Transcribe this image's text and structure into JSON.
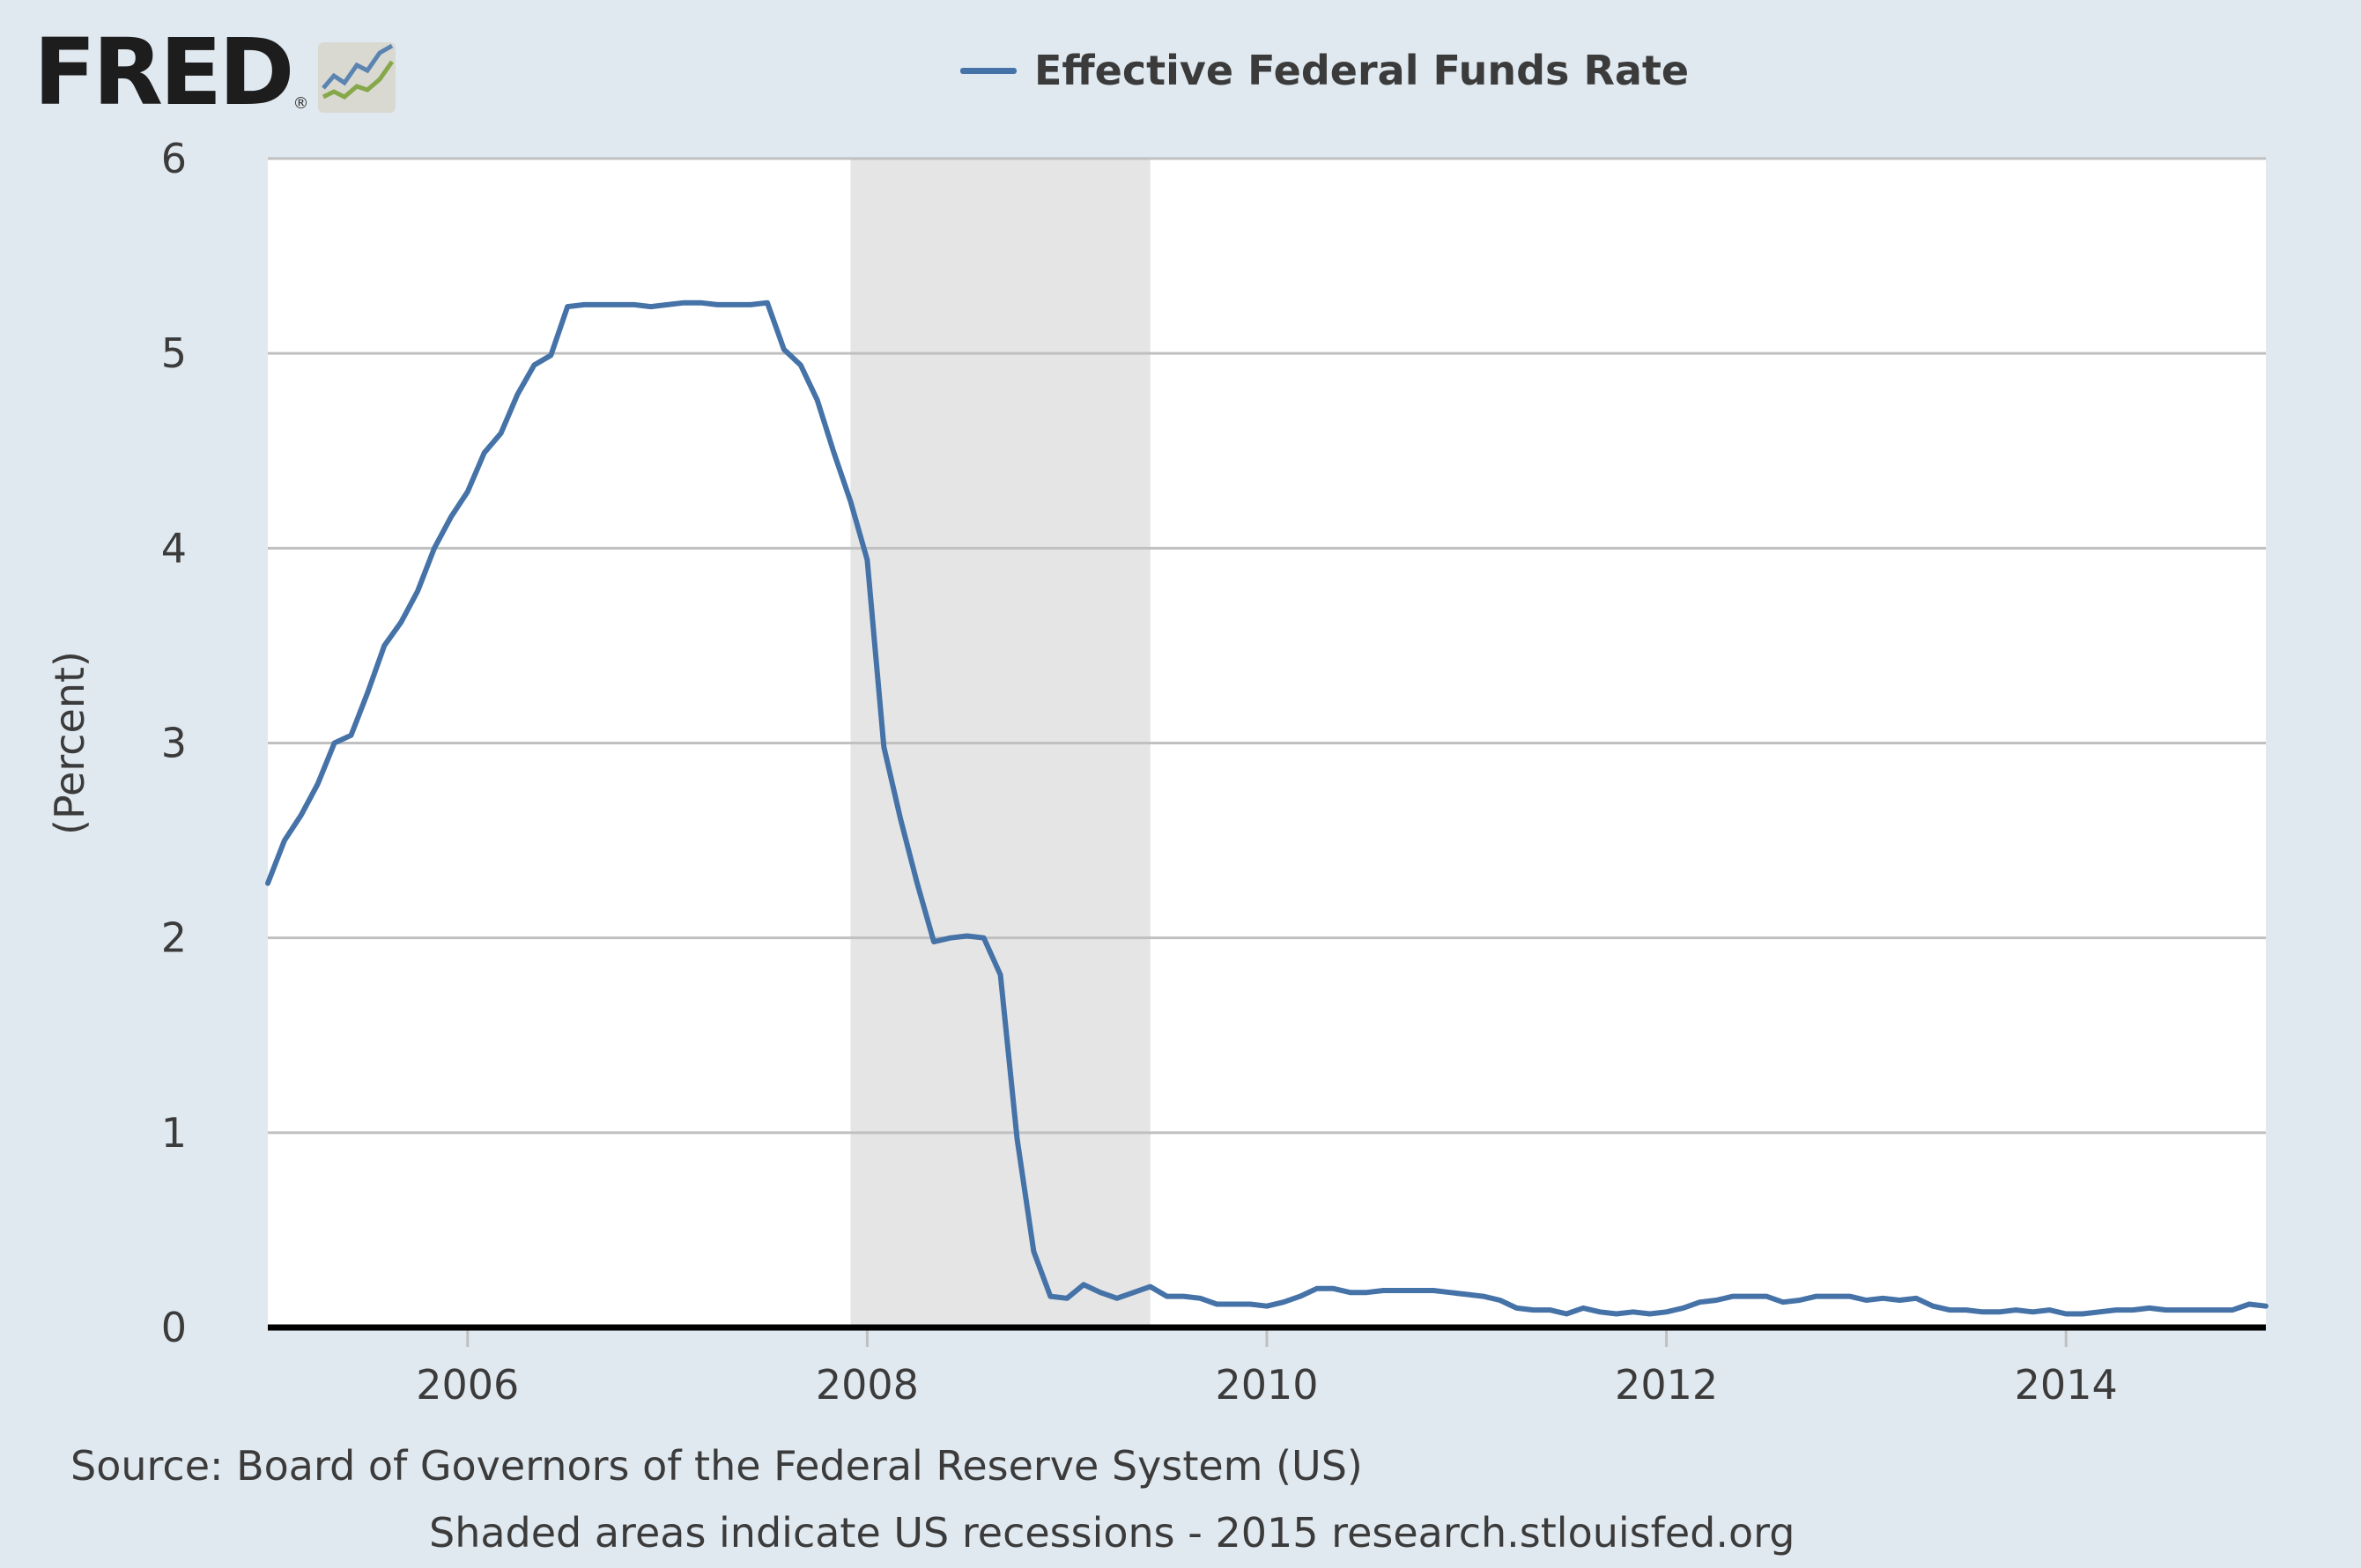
{
  "logo": {
    "text": "FRED",
    "registered_mark": "®",
    "icon": "fred-chart-icon"
  },
  "legend": {
    "label": "Effective Federal Funds Rate"
  },
  "colors": {
    "line": "#4572a7",
    "recession": "#e5e5e5",
    "plot_background": "#ffffff",
    "page_background": "#e1e9f0",
    "grid": "#c0c0c0",
    "baseline": "#000000",
    "text": "#3b3b3b"
  },
  "footer": {
    "source": "Source: Board of Governors of the Federal Reserve System (US)",
    "note": "Shaded areas indicate US recessions - 2015 research.stlouisfed.org"
  },
  "chart_data": {
    "type": "line",
    "title": "",
    "xlabel": "",
    "ylabel": "(Percent)",
    "xlim": [
      "2005-01",
      "2015-01"
    ],
    "ylim": [
      0,
      6
    ],
    "y_ticks": [
      0,
      1,
      2,
      3,
      4,
      5,
      6
    ],
    "x_ticks": [
      "2006",
      "2008",
      "2010",
      "2012",
      "2014"
    ],
    "grid": true,
    "legend_position": "top",
    "recessions": [
      {
        "start": "2007-12",
        "end": "2009-06"
      }
    ],
    "series": [
      {
        "name": "Effective Federal Funds Rate",
        "x": [
          "2005-01",
          "2005-02",
          "2005-03",
          "2005-04",
          "2005-05",
          "2005-06",
          "2005-07",
          "2005-08",
          "2005-09",
          "2005-10",
          "2005-11",
          "2005-12",
          "2006-01",
          "2006-02",
          "2006-03",
          "2006-04",
          "2006-05",
          "2006-06",
          "2006-07",
          "2006-08",
          "2006-09",
          "2006-10",
          "2006-11",
          "2006-12",
          "2007-01",
          "2007-02",
          "2007-03",
          "2007-04",
          "2007-05",
          "2007-06",
          "2007-07",
          "2007-08",
          "2007-09",
          "2007-10",
          "2007-11",
          "2007-12",
          "2008-01",
          "2008-02",
          "2008-03",
          "2008-04",
          "2008-05",
          "2008-06",
          "2008-07",
          "2008-08",
          "2008-09",
          "2008-10",
          "2008-11",
          "2008-12",
          "2009-01",
          "2009-02",
          "2009-03",
          "2009-04",
          "2009-05",
          "2009-06",
          "2009-07",
          "2009-08",
          "2009-09",
          "2009-10",
          "2009-11",
          "2009-12",
          "2010-01",
          "2010-02",
          "2010-03",
          "2010-04",
          "2010-05",
          "2010-06",
          "2010-07",
          "2010-08",
          "2010-09",
          "2010-10",
          "2010-11",
          "2010-12",
          "2011-01",
          "2011-02",
          "2011-03",
          "2011-04",
          "2011-05",
          "2011-06",
          "2011-07",
          "2011-08",
          "2011-09",
          "2011-10",
          "2011-11",
          "2011-12",
          "2012-01",
          "2012-02",
          "2012-03",
          "2012-04",
          "2012-05",
          "2012-06",
          "2012-07",
          "2012-08",
          "2012-09",
          "2012-10",
          "2012-11",
          "2012-12",
          "2013-01",
          "2013-02",
          "2013-03",
          "2013-04",
          "2013-05",
          "2013-06",
          "2013-07",
          "2013-08",
          "2013-09",
          "2013-10",
          "2013-11",
          "2013-12",
          "2014-01",
          "2014-02",
          "2014-03",
          "2014-04",
          "2014-05",
          "2014-06",
          "2014-07",
          "2014-08",
          "2014-09",
          "2014-10",
          "2014-11",
          "2014-12",
          "2015-01"
        ],
        "values": [
          2.28,
          2.5,
          2.63,
          2.79,
          3.0,
          3.04,
          3.26,
          3.5,
          3.62,
          3.78,
          4.0,
          4.16,
          4.29,
          4.49,
          4.59,
          4.79,
          4.94,
          4.99,
          5.24,
          5.25,
          5.25,
          5.25,
          5.25,
          5.24,
          5.25,
          5.26,
          5.26,
          5.25,
          5.25,
          5.25,
          5.26,
          5.02,
          4.94,
          4.76,
          4.49,
          4.24,
          3.94,
          2.98,
          2.61,
          2.28,
          1.98,
          2.0,
          2.01,
          2.0,
          1.81,
          0.97,
          0.39,
          0.16,
          0.15,
          0.22,
          0.18,
          0.15,
          0.18,
          0.21,
          0.16,
          0.16,
          0.15,
          0.12,
          0.12,
          0.12,
          0.11,
          0.13,
          0.16,
          0.2,
          0.2,
          0.18,
          0.18,
          0.19,
          0.19,
          0.19,
          0.19,
          0.18,
          0.17,
          0.16,
          0.14,
          0.1,
          0.09,
          0.09,
          0.07,
          0.1,
          0.08,
          0.07,
          0.08,
          0.07,
          0.08,
          0.1,
          0.13,
          0.14,
          0.16,
          0.16,
          0.16,
          0.13,
          0.14,
          0.16,
          0.16,
          0.16,
          0.14,
          0.15,
          0.14,
          0.15,
          0.11,
          0.09,
          0.09,
          0.08,
          0.08,
          0.09,
          0.08,
          0.09,
          0.07,
          0.07,
          0.08,
          0.09,
          0.09,
          0.1,
          0.09,
          0.09,
          0.09,
          0.09,
          0.09,
          0.12,
          0.11
        ]
      }
    ]
  }
}
